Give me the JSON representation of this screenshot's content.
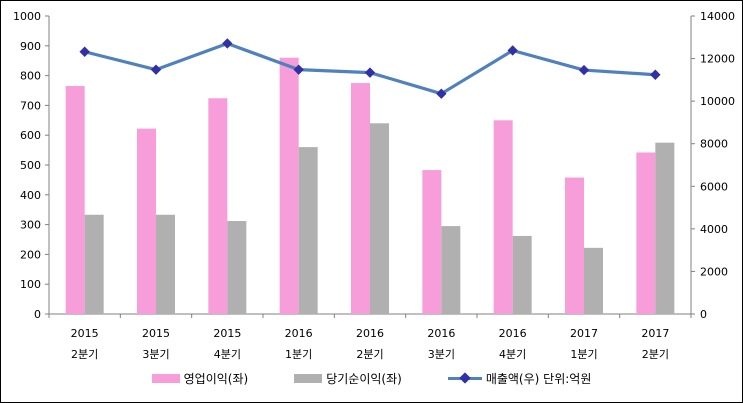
{
  "chart_data": {
    "type": "combo-bar-line",
    "title": "",
    "grid": false,
    "legend_position": "bottom",
    "categories": [
      {
        "year": "2015",
        "quarter": "2분기"
      },
      {
        "year": "2015",
        "quarter": "3분기"
      },
      {
        "year": "2015",
        "quarter": "4분기"
      },
      {
        "year": "2016",
        "quarter": "1분기"
      },
      {
        "year": "2016",
        "quarter": "2분기"
      },
      {
        "year": "2016",
        "quarter": "3분기"
      },
      {
        "year": "2016",
        "quarter": "4분기"
      },
      {
        "year": "2017",
        "quarter": "1분기"
      },
      {
        "year": "2017",
        "quarter": "2분기"
      }
    ],
    "series": [
      {
        "name": "영업이익(좌)",
        "type": "bar",
        "axis": "left",
        "color": "#F79EDA",
        "values": [
          765,
          622,
          724,
          860,
          775,
          483,
          650,
          458,
          542
        ]
      },
      {
        "name": "당기순이익(좌)",
        "type": "bar",
        "axis": "left",
        "color": "#B0B0B0",
        "values": [
          333,
          333,
          312,
          560,
          640,
          295,
          262,
          222,
          575
        ]
      },
      {
        "name": "매출액(우) 단위:억원",
        "type": "line",
        "axis": "right",
        "color": "#4F81BD",
        "marker_color": "#3230A5",
        "values": [
          12320,
          11480,
          12710,
          11480,
          11340,
          10350,
          12380,
          11460,
          11240
        ]
      }
    ],
    "left_axis": {
      "min": 0,
      "max": 1000,
      "step": 100,
      "labels": [
        "0",
        "100",
        "200",
        "300",
        "400",
        "500",
        "600",
        "700",
        "800",
        "900",
        "1000"
      ]
    },
    "right_axis": {
      "min": 0,
      "max": 14000,
      "step": 2000,
      "labels": [
        "0",
        "2000",
        "4000",
        "6000",
        "8000",
        "10000",
        "12000",
        "14000"
      ]
    },
    "axis_color": "#808080",
    "text_color": "#000000"
  }
}
